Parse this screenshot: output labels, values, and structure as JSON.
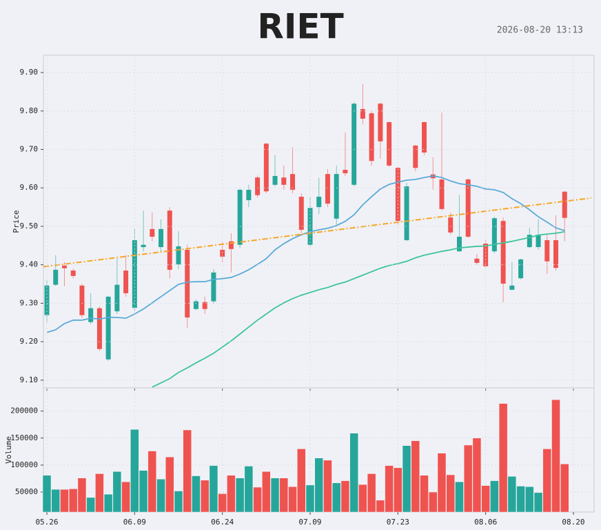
{
  "chart_data": [
    {
      "type": "candlestick",
      "title": "RIET",
      "subtitle": "2026-08-20 13:13",
      "y_label": "Price",
      "categories": [
        "05.26",
        null,
        null,
        null,
        null,
        null,
        null,
        null,
        null,
        null,
        "06.09",
        null,
        null,
        null,
        null,
        null,
        null,
        null,
        null,
        null,
        "06.24",
        null,
        null,
        null,
        null,
        null,
        null,
        null,
        null,
        null,
        "07.09",
        null,
        null,
        null,
        null,
        null,
        null,
        null,
        null,
        null,
        "07.23",
        null,
        null,
        null,
        null,
        null,
        null,
        null,
        null,
        null,
        "08.06",
        null,
        null,
        null,
        null,
        null,
        null,
        null,
        null,
        null,
        "08.20"
      ],
      "open": [
        9.269,
        9.348,
        9.398,
        9.385,
        9.346,
        9.251,
        9.287,
        9.154,
        9.279,
        9.385,
        9.288,
        9.446,
        9.493,
        9.446,
        9.541,
        9.401,
        9.439,
        9.285,
        9.303,
        9.305,
        9.439,
        9.461,
        9.452,
        9.568,
        9.627,
        9.715,
        9.608,
        9.627,
        9.636,
        9.577,
        9.452,
        9.55,
        9.636,
        9.52,
        9.647,
        9.608,
        9.805,
        9.794,
        9.819,
        9.771,
        9.652,
        9.464,
        9.71,
        9.771,
        9.635,
        9.622,
        9.523,
        9.435,
        9.622,
        9.416,
        9.455,
        9.435,
        9.514,
        9.335,
        9.365,
        9.446,
        9.446,
        9.464,
        9.464,
        9.59,
        null
      ],
      "high": [
        9.362,
        9.425,
        9.407,
        9.39,
        9.35,
        9.326,
        9.292,
        9.32,
        9.416,
        9.425,
        9.493,
        9.541,
        9.536,
        9.518,
        9.55,
        9.487,
        9.452,
        9.31,
        9.317,
        9.389,
        9.461,
        9.482,
        9.598,
        9.608,
        9.632,
        9.717,
        9.685,
        9.658,
        9.706,
        9.586,
        9.577,
        9.626,
        9.649,
        9.658,
        9.744,
        9.822,
        9.87,
        9.801,
        9.822,
        9.772,
        9.654,
        9.613,
        9.712,
        9.772,
        9.68,
        9.796,
        9.536,
        9.582,
        9.624,
        9.428,
        9.464,
        9.525,
        9.523,
        9.407,
        9.416,
        9.496,
        9.518,
        9.478,
        9.529,
        9.592,
        null
      ],
      "low": [
        9.249,
        9.345,
        9.344,
        9.365,
        9.262,
        9.245,
        9.176,
        9.15,
        9.272,
        9.317,
        9.281,
        9.434,
        9.461,
        9.434,
        9.365,
        9.389,
        9.236,
        9.282,
        9.272,
        9.299,
        9.407,
        9.38,
        9.443,
        9.55,
        9.575,
        9.586,
        9.604,
        9.595,
        9.586,
        9.482,
        9.446,
        9.532,
        9.55,
        9.505,
        9.631,
        9.604,
        9.765,
        9.658,
        9.676,
        9.654,
        9.505,
        9.461,
        9.643,
        9.685,
        9.595,
        9.541,
        9.479,
        9.434,
        9.47,
        9.4,
        9.392,
        9.43,
        9.303,
        9.334,
        9.362,
        9.443,
        9.439,
        9.376,
        9.385,
        9.461,
        null
      ],
      "close": [
        9.346,
        9.387,
        9.391,
        9.371,
        9.269,
        9.287,
        9.181,
        9.317,
        9.348,
        9.326,
        9.464,
        9.452,
        9.473,
        9.493,
        9.387,
        9.448,
        9.263,
        9.305,
        9.285,
        9.38,
        9.421,
        9.441,
        9.595,
        9.595,
        9.581,
        9.591,
        9.631,
        9.608,
        9.595,
        9.491,
        9.548,
        9.577,
        9.559,
        9.636,
        9.638,
        9.819,
        9.78,
        9.67,
        9.721,
        9.658,
        9.514,
        9.604,
        9.652,
        9.692,
        9.625,
        9.545,
        9.484,
        9.473,
        9.473,
        9.405,
        9.396,
        9.521,
        9.351,
        9.346,
        9.414,
        9.478,
        9.478,
        9.409,
        9.392,
        9.522,
        null
      ],
      "up_color": "#26a69a",
      "down_color": "#ef5350",
      "lines": [
        {
          "color": "#5aaad8",
          "values": [
            9.224,
            9.231,
            9.247,
            9.256,
            9.256,
            9.261,
            9.259,
            9.263,
            9.263,
            9.261,
            9.272,
            9.285,
            9.301,
            9.317,
            9.333,
            9.349,
            9.355,
            9.356,
            9.356,
            9.362,
            9.364,
            9.367,
            9.376,
            9.387,
            9.401,
            9.416,
            9.439,
            9.455,
            9.468,
            9.478,
            9.486,
            9.491,
            9.495,
            9.502,
            9.513,
            9.53,
            9.556,
            9.577,
            9.597,
            9.609,
            9.615,
            9.62,
            9.622,
            9.627,
            9.631,
            9.627,
            9.618,
            9.611,
            9.608,
            9.604,
            9.597,
            9.595,
            9.588,
            9.572,
            9.559,
            9.543,
            9.525,
            9.511,
            9.496,
            9.489,
            null
          ]
        },
        {
          "color": "#3cc49a",
          "values": [
            null,
            null,
            null,
            null,
            null,
            null,
            null,
            null,
            null,
            null,
            null,
            null,
            9.082,
            9.093,
            9.104,
            9.12,
            9.132,
            9.145,
            9.157,
            9.17,
            9.186,
            9.202,
            9.22,
            9.238,
            9.256,
            9.272,
            9.288,
            9.301,
            9.312,
            9.321,
            9.328,
            9.335,
            9.341,
            9.349,
            9.355,
            9.364,
            9.373,
            9.382,
            9.391,
            9.398,
            9.403,
            9.409,
            9.418,
            9.425,
            9.43,
            9.435,
            9.439,
            9.444,
            9.446,
            9.448,
            9.449,
            9.453,
            9.457,
            9.461,
            9.466,
            9.471,
            9.477,
            9.48,
            9.482,
            9.486,
            null
          ]
        }
      ],
      "trend_line": {
        "color": "#f5a623",
        "values": [
          9.396,
          9.568
        ]
      },
      "ylim": [
        9.08,
        9.945
      ],
      "yticks": [
        {
          "value": 9.1,
          "label": "9.10"
        },
        {
          "value": 9.2,
          "label": "9.20"
        },
        {
          "value": 9.3,
          "label": "9.30"
        },
        {
          "value": 9.4,
          "label": "9.40"
        },
        {
          "value": 9.5,
          "label": "9.50"
        },
        {
          "value": 9.6,
          "label": "9.60"
        },
        {
          "value": 9.7,
          "label": "9.70"
        },
        {
          "value": 9.8,
          "label": "9.80"
        },
        {
          "value": 9.9,
          "label": "9.90"
        }
      ],
      "grid": true
    },
    {
      "type": "bar",
      "y_label": "Volume",
      "values": [
        81000,
        55000,
        55000,
        56000,
        76000,
        40000,
        84000,
        46000,
        88000,
        69000,
        166000,
        90000,
        126000,
        74000,
        115000,
        52000,
        165000,
        80000,
        72000,
        99000,
        47000,
        81000,
        76000,
        98000,
        59000,
        88000,
        76000,
        76000,
        60000,
        130000,
        63000,
        113000,
        109000,
        67000,
        71000,
        159000,
        64000,
        84000,
        35000,
        99000,
        95000,
        136000,
        145000,
        81000,
        50000,
        122000,
        82000,
        69000,
        137000,
        150000,
        62000,
        71000,
        214000,
        79000,
        61000,
        60000,
        49000,
        130000,
        221000,
        102000,
        null
      ],
      "ylim": [
        13000,
        243000
      ],
      "yticks": [
        50000,
        100000,
        150000,
        200000
      ],
      "grid": true
    }
  ]
}
